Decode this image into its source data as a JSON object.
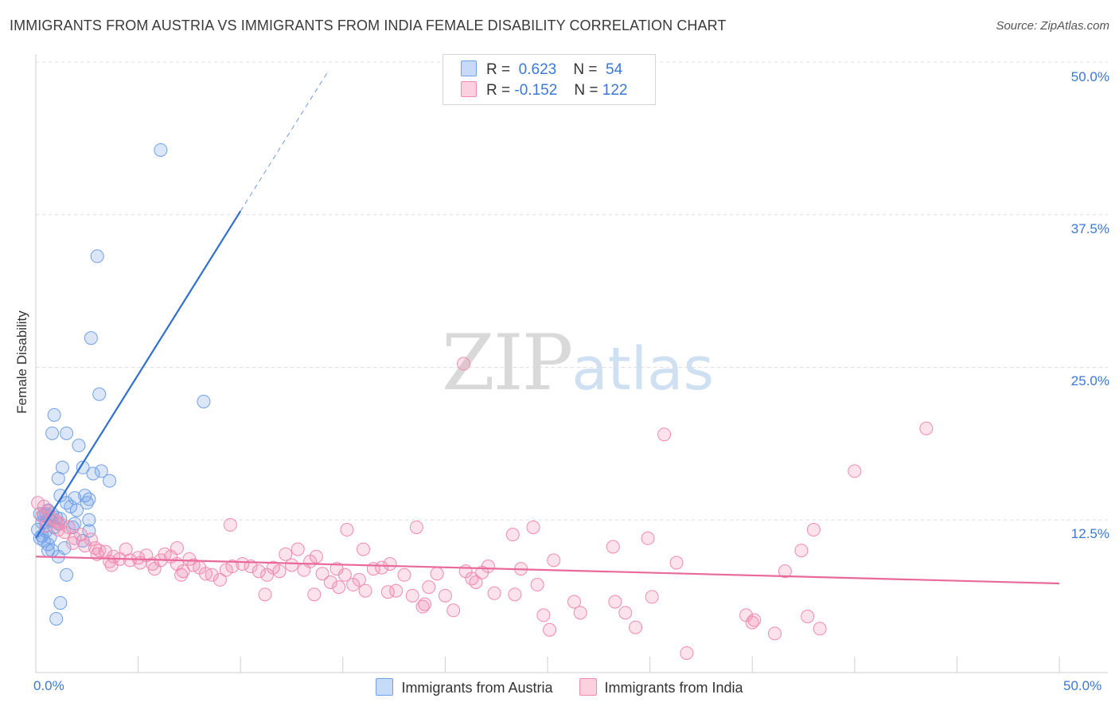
{
  "title": "IMMIGRANTS FROM AUSTRIA VS IMMIGRANTS FROM INDIA FEMALE DISABILITY CORRELATION CHART",
  "source": "Source: ZipAtlas.com",
  "watermark": {
    "zip": "ZIP",
    "atlas": "atlas"
  },
  "colors": {
    "austria": "#6fa0e8",
    "austria_line": "#2f6fd1",
    "india": "#f08aae",
    "india_line": "#e8699a",
    "tick": "#3b78d8"
  },
  "legend": {
    "austria": {
      "r_label": "R =",
      "r_value": "0.623",
      "n_label": "N =",
      "n_value": "54"
    },
    "india": {
      "r_label": "R =",
      "r_value": "-0.152",
      "n_label": "N =",
      "n_value": "122"
    }
  },
  "chart_data": {
    "type": "scatter",
    "title": "IMMIGRANTS FROM AUSTRIA VS IMMIGRANTS FROM INDIA FEMALE DISABILITY CORRELATION CHART",
    "xlabel": "",
    "ylabel": "Female Disability",
    "xlim": [
      0,
      50
    ],
    "ylim": [
      0,
      50
    ],
    "x_tick_labels": [
      "0.0%",
      "50.0%"
    ],
    "y_ticks": [
      12.5,
      25.0,
      37.5,
      50.0
    ],
    "y_tick_labels": [
      "12.5%",
      "25.0%",
      "37.5%",
      "50.0%"
    ],
    "grid": true,
    "series": [
      {
        "name": "Immigrants from Austria",
        "R": 0.623,
        "N": 54,
        "trend": {
          "x_start": 0.0,
          "y_start": 11.0,
          "x_end": 10.0,
          "y_end": 37.8,
          "dash_to_x": 14.3,
          "dash_to_y": 49.3
        },
        "points": [
          [
            6.1,
            42.8
          ],
          [
            3.0,
            34.1
          ],
          [
            2.7,
            27.4
          ],
          [
            3.1,
            22.8
          ],
          [
            8.2,
            22.2
          ],
          [
            0.9,
            21.1
          ],
          [
            0.8,
            19.6
          ],
          [
            1.5,
            19.6
          ],
          [
            2.1,
            18.6
          ],
          [
            1.3,
            16.8
          ],
          [
            2.3,
            16.8
          ],
          [
            3.2,
            16.5
          ],
          [
            2.8,
            16.3
          ],
          [
            1.1,
            15.9
          ],
          [
            3.6,
            15.7
          ],
          [
            1.2,
            14.5
          ],
          [
            2.4,
            14.5
          ],
          [
            1.9,
            14.3
          ],
          [
            2.6,
            14.2
          ],
          [
            2.5,
            13.9
          ],
          [
            1.5,
            13.9
          ],
          [
            1.7,
            13.6
          ],
          [
            0.6,
            13.3
          ],
          [
            0.2,
            13.0
          ],
          [
            0.8,
            13.0
          ],
          [
            2.0,
            13.3
          ],
          [
            0.4,
            12.9
          ],
          [
            1.0,
            12.7
          ],
          [
            0.7,
            12.5
          ],
          [
            0.5,
            12.3
          ],
          [
            1.2,
            12.6
          ],
          [
            2.6,
            12.5
          ],
          [
            0.3,
            12.3
          ],
          [
            1.1,
            12.2
          ],
          [
            0.9,
            11.9
          ],
          [
            0.1,
            11.7
          ],
          [
            0.5,
            11.6
          ],
          [
            1.8,
            11.9
          ],
          [
            2.6,
            11.6
          ],
          [
            0.7,
            11.1
          ],
          [
            0.2,
            11.0
          ],
          [
            0.4,
            10.8
          ],
          [
            2.3,
            10.8
          ],
          [
            0.6,
            10.5
          ],
          [
            1.4,
            10.2
          ],
          [
            0.6,
            10.0
          ],
          [
            0.8,
            10.0
          ],
          [
            1.1,
            9.5
          ],
          [
            1.5,
            8.0
          ],
          [
            1.2,
            5.7
          ],
          [
            1.0,
            4.4
          ],
          [
            0.3,
            11.2
          ],
          [
            1.9,
            12.2
          ],
          [
            0.5,
            13.0
          ]
        ]
      },
      {
        "name": "Immigrants from India",
        "R": -0.152,
        "N": 122,
        "trend": {
          "x_start": 0.0,
          "y_start": 9.5,
          "x_end": 50.0,
          "y_end": 7.3
        },
        "points": [
          [
            0.1,
            13.9
          ],
          [
            0.4,
            13.6
          ],
          [
            0.6,
            13.2
          ],
          [
            0.3,
            12.8
          ],
          [
            0.8,
            12.6
          ],
          [
            1.0,
            12.4
          ],
          [
            1.2,
            12.2
          ],
          [
            0.5,
            12.0
          ],
          [
            1.6,
            11.9
          ],
          [
            1.1,
            11.7
          ],
          [
            1.4,
            11.5
          ],
          [
            2.2,
            11.3
          ],
          [
            1.9,
            11.0
          ],
          [
            2.7,
            10.9
          ],
          [
            1.8,
            10.6
          ],
          [
            2.4,
            10.4
          ],
          [
            2.9,
            10.2
          ],
          [
            3.1,
            10.0
          ],
          [
            3.4,
            9.9
          ],
          [
            3.0,
            9.7
          ],
          [
            4.4,
            10.1
          ],
          [
            3.8,
            9.5
          ],
          [
            4.1,
            9.3
          ],
          [
            3.6,
            9.1
          ],
          [
            4.6,
            9.2
          ],
          [
            5.0,
            9.4
          ],
          [
            5.4,
            9.6
          ],
          [
            5.1,
            9.0
          ],
          [
            5.7,
            8.9
          ],
          [
            6.1,
            9.2
          ],
          [
            6.3,
            9.7
          ],
          [
            6.6,
            9.5
          ],
          [
            5.8,
            8.5
          ],
          [
            6.9,
            8.9
          ],
          [
            7.2,
            8.3
          ],
          [
            7.5,
            9.3
          ],
          [
            7.1,
            8.0
          ],
          [
            7.7,
            8.8
          ],
          [
            8.0,
            8.6
          ],
          [
            8.3,
            8.1
          ],
          [
            8.6,
            8.0
          ],
          [
            9.0,
            7.6
          ],
          [
            9.3,
            8.4
          ],
          [
            9.6,
            8.7
          ],
          [
            10.1,
            8.9
          ],
          [
            10.5,
            8.7
          ],
          [
            10.9,
            8.3
          ],
          [
            11.3,
            8.0
          ],
          [
            11.6,
            8.6
          ],
          [
            11.9,
            8.3
          ],
          [
            12.2,
            9.7
          ],
          [
            12.5,
            8.8
          ],
          [
            12.8,
            10.1
          ],
          [
            13.1,
            8.4
          ],
          [
            13.4,
            9.1
          ],
          [
            13.7,
            9.5
          ],
          [
            14.0,
            8.1
          ],
          [
            14.4,
            7.4
          ],
          [
            14.8,
            7.0
          ],
          [
            15.1,
            8.0
          ],
          [
            15.5,
            7.2
          ],
          [
            15.8,
            7.6
          ],
          [
            16.1,
            6.7
          ],
          [
            16.5,
            8.5
          ],
          [
            16.9,
            8.6
          ],
          [
            17.3,
            8.9
          ],
          [
            17.6,
            6.7
          ],
          [
            18.0,
            8.0
          ],
          [
            18.4,
            6.3
          ],
          [
            18.9,
            5.4
          ],
          [
            19.2,
            7.0
          ],
          [
            19.6,
            8.1
          ],
          [
            20.0,
            6.3
          ],
          [
            20.4,
            5.1
          ],
          [
            21.0,
            8.3
          ],
          [
            21.3,
            7.7
          ],
          [
            21.5,
            7.4
          ],
          [
            22.1,
            8.7
          ],
          [
            23.4,
            6.4
          ],
          [
            23.7,
            8.5
          ],
          [
            24.5,
            7.2
          ],
          [
            25.3,
            9.2
          ],
          [
            24.8,
            4.7
          ],
          [
            25.1,
            3.5
          ],
          [
            26.3,
            5.8
          ],
          [
            26.6,
            4.9
          ],
          [
            28.3,
            5.8
          ],
          [
            28.8,
            4.9
          ],
          [
            29.3,
            3.7
          ],
          [
            30.1,
            6.2
          ],
          [
            29.9,
            11.0
          ],
          [
            31.3,
            9.0
          ],
          [
            31.8,
            1.6
          ],
          [
            34.7,
            4.7
          ],
          [
            35.0,
            4.1
          ],
          [
            35.1,
            4.3
          ],
          [
            36.1,
            3.2
          ],
          [
            36.6,
            8.3
          ],
          [
            37.4,
            10.0
          ],
          [
            37.7,
            4.6
          ],
          [
            38.0,
            11.7
          ],
          [
            38.3,
            3.6
          ],
          [
            30.7,
            19.5
          ],
          [
            43.5,
            20.0
          ],
          [
            40.0,
            16.5
          ],
          [
            20.9,
            25.3
          ],
          [
            15.2,
            11.7
          ],
          [
            18.6,
            11.9
          ],
          [
            23.3,
            11.3
          ],
          [
            24.3,
            11.9
          ],
          [
            16.0,
            10.1
          ],
          [
            13.6,
            6.4
          ],
          [
            11.2,
            6.4
          ],
          [
            9.5,
            12.1
          ],
          [
            17.2,
            6.6
          ],
          [
            28.2,
            10.3
          ],
          [
            21.8,
            8.2
          ],
          [
            22.4,
            6.5
          ],
          [
            19.0,
            5.6
          ],
          [
            6.9,
            10.2
          ],
          [
            3.7,
            8.8
          ],
          [
            14.7,
            8.5
          ]
        ]
      }
    ]
  },
  "bottom_legend": {
    "austria": "Immigrants from Austria",
    "india": "Immigrants from India"
  }
}
